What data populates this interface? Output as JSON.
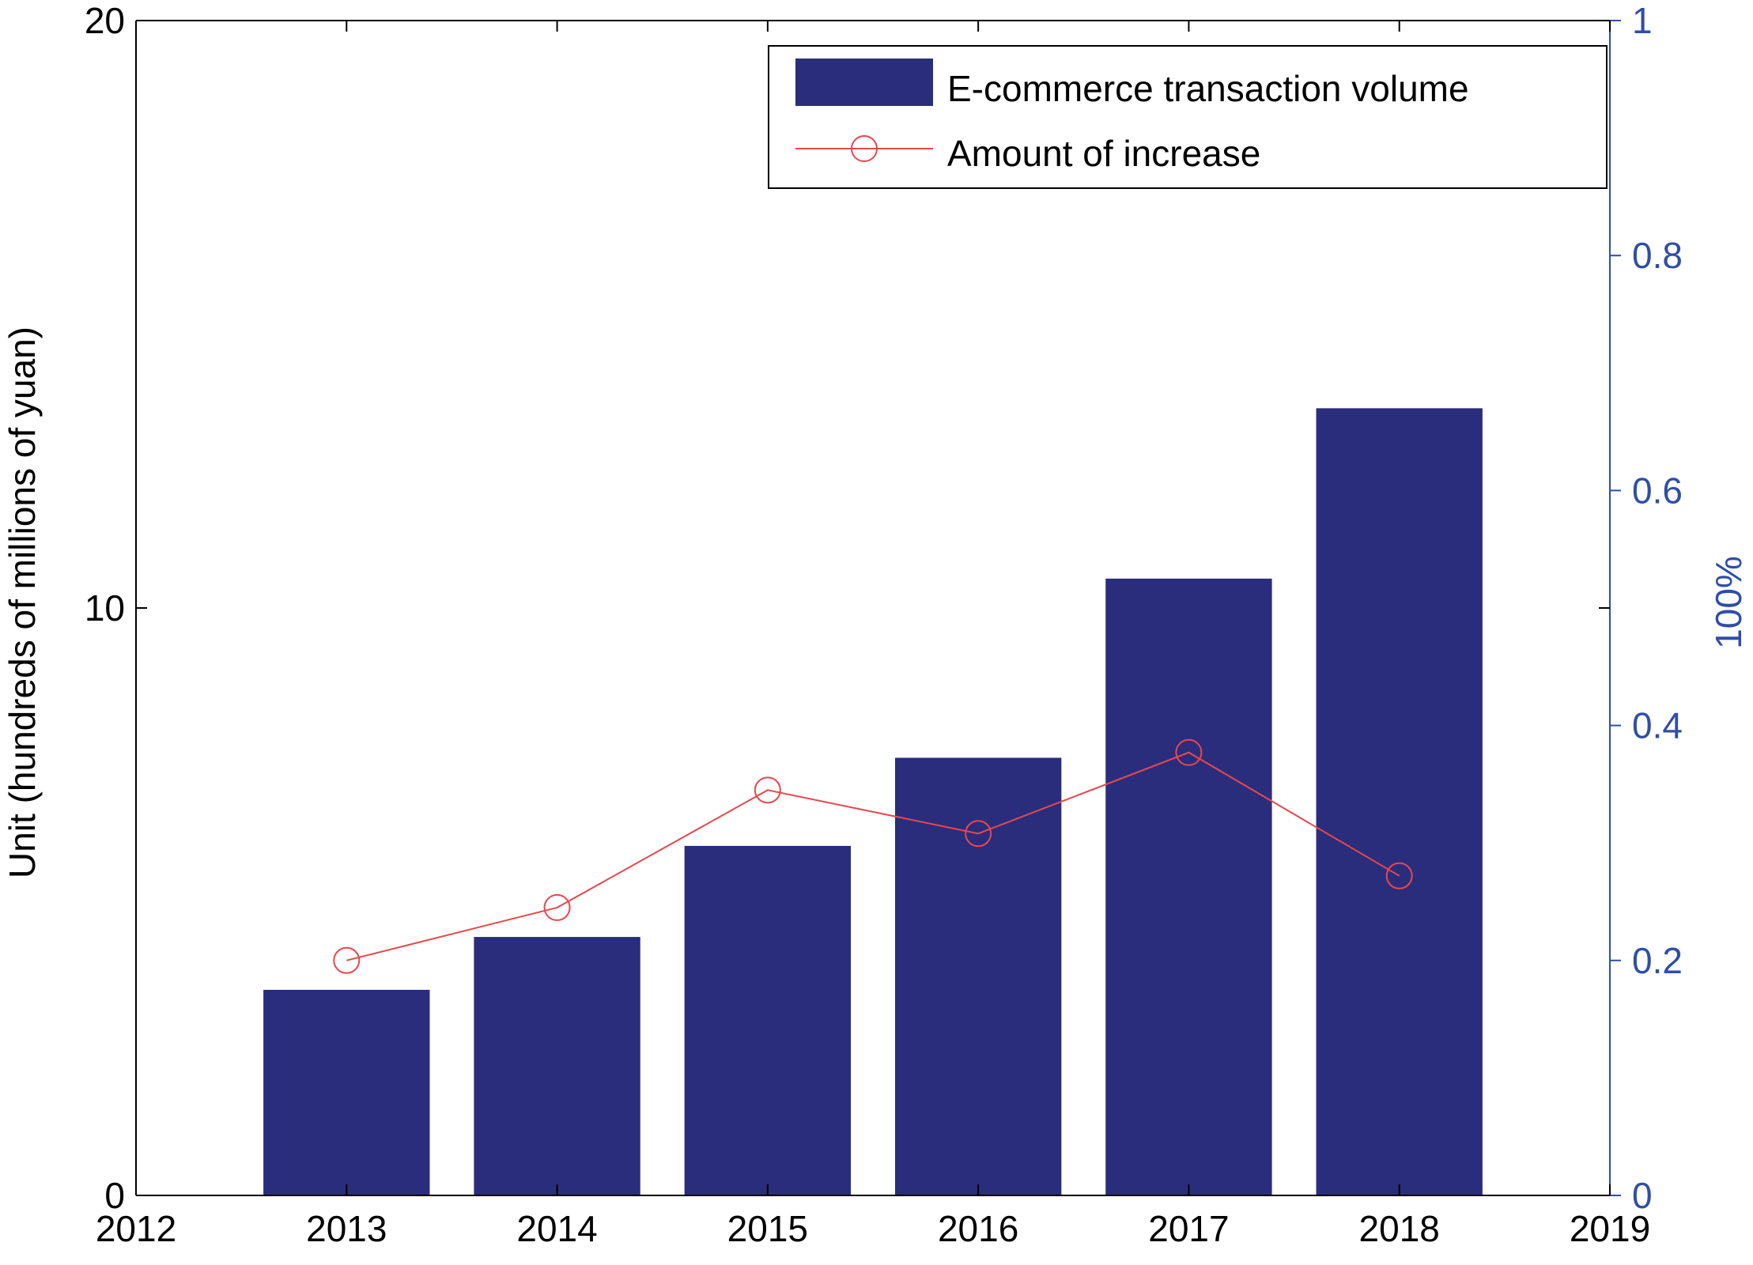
{
  "chart_data": {
    "type": "bar+line",
    "x": [
      2013,
      2014,
      2015,
      2016,
      2017,
      2018
    ],
    "x_ticks": [
      "2012",
      "2013",
      "2014",
      "2015",
      "2016",
      "2017",
      "2018",
      "2019"
    ],
    "xlim": [
      2012,
      2019
    ],
    "ylabel_left": "Unit (hundreds of millions of yuan)",
    "ylim_left": [
      0,
      20
    ],
    "yticks_left": [
      "0",
      "10",
      "20"
    ],
    "ylabel_right": "100%",
    "ylim_right": [
      0,
      1
    ],
    "yticks_right": [
      "0",
      "0.2",
      "0.4",
      "0.6",
      "0.8",
      "1"
    ],
    "legend_position": "top-right",
    "grid": false,
    "series": [
      {
        "name": "E-commerce transaction volume",
        "kind": "bar",
        "axis": "left",
        "color": "#2a2d7c",
        "values": [
          3.5,
          4.4,
          5.95,
          7.45,
          10.5,
          13.4
        ]
      },
      {
        "name": "Amount of increase",
        "kind": "line",
        "axis": "right",
        "color": "#e8474f",
        "marker": "circle",
        "values": [
          0.2,
          0.245,
          0.345,
          0.308,
          0.377,
          0.272
        ]
      }
    ],
    "colors": {
      "left_axis": "#000000",
      "right_axis": "#2f4ea6"
    }
  }
}
